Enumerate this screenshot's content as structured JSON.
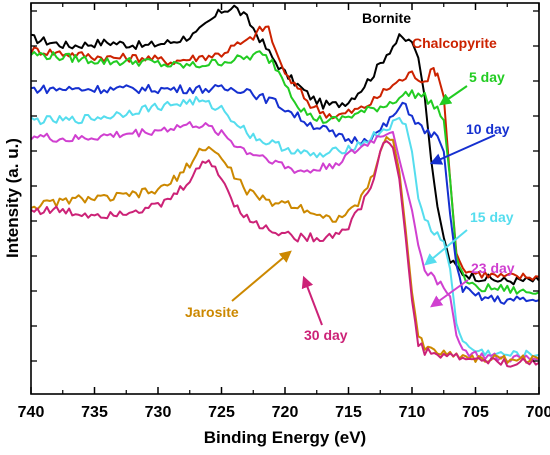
{
  "chart_data": {
    "type": "line",
    "xlabel": "Binding Energy (eV)",
    "ylabel": "Intensity (a. u.)",
    "xlim": [
      740,
      700
    ],
    "x_reversed": true,
    "x_ticks": [
      "740",
      "735",
      "730",
      "725",
      "720",
      "715",
      "710",
      "705",
      "700"
    ],
    "y_ticks_labeled": false,
    "y_units": "relative (0-100)",
    "ylim": [
      0,
      100
    ],
    "grid": false,
    "legend": "inline labels with arrows",
    "series": [
      {
        "name": "Bornite",
        "color": "#000000",
        "points": [
          [
            740,
            91
          ],
          [
            737,
            89
          ],
          [
            734,
            90
          ],
          [
            731,
            89
          ],
          [
            729,
            90
          ],
          [
            727,
            92
          ],
          [
            726,
            95
          ],
          [
            725,
            98
          ],
          [
            724,
            99
          ],
          [
            723,
            96
          ],
          [
            722,
            91
          ],
          [
            721,
            86
          ],
          [
            720,
            82
          ],
          [
            719,
            79
          ],
          [
            718,
            76
          ],
          [
            717,
            74
          ],
          [
            716,
            74
          ],
          [
            715,
            75
          ],
          [
            714,
            78
          ],
          [
            713,
            82
          ],
          [
            712,
            87
          ],
          [
            711,
            91
          ],
          [
            710,
            90
          ],
          [
            709.5,
            86
          ],
          [
            709,
            76
          ],
          [
            708.5,
            60
          ],
          [
            708,
            48
          ],
          [
            707.5,
            40
          ],
          [
            707,
            34
          ],
          [
            706,
            31
          ],
          [
            705,
            30
          ],
          [
            703,
            29
          ],
          [
            701,
            29
          ],
          [
            700,
            29
          ]
        ]
      },
      {
        "name": "Chalcopyrite",
        "color": "#cc2200",
        "points": [
          [
            740,
            88
          ],
          [
            737,
            87
          ],
          [
            734,
            86
          ],
          [
            731,
            86
          ],
          [
            729,
            85
          ],
          [
            727,
            86
          ],
          [
            725,
            87
          ],
          [
            724,
            89
          ],
          [
            723,
            90
          ],
          [
            722,
            93
          ],
          [
            721.3,
            94
          ],
          [
            721,
            90
          ],
          [
            720,
            82
          ],
          [
            719,
            78
          ],
          [
            718,
            74
          ],
          [
            717,
            72
          ],
          [
            716,
            71
          ],
          [
            715,
            72
          ],
          [
            714,
            73
          ],
          [
            713,
            75
          ],
          [
            712,
            78
          ],
          [
            711,
            80
          ],
          [
            710,
            82
          ],
          [
            709.5,
            81
          ],
          [
            709,
            80
          ],
          [
            708.3,
            83
          ],
          [
            708,
            82
          ],
          [
            707.5,
            76
          ],
          [
            707,
            55
          ],
          [
            706.5,
            36
          ],
          [
            706,
            32
          ],
          [
            705,
            31
          ],
          [
            703,
            30
          ],
          [
            701,
            30
          ],
          [
            700,
            30
          ]
        ]
      },
      {
        "name": "5 day",
        "color": "#22cc22",
        "points": [
          [
            740,
            87
          ],
          [
            737,
            86
          ],
          [
            734,
            85
          ],
          [
            731,
            85
          ],
          [
            729,
            84
          ],
          [
            727,
            84
          ],
          [
            725,
            85
          ],
          [
            723,
            86
          ],
          [
            722,
            87
          ],
          [
            721,
            85
          ],
          [
            720,
            80
          ],
          [
            719,
            74
          ],
          [
            718,
            71
          ],
          [
            717,
            70
          ],
          [
            716,
            70
          ],
          [
            715,
            71
          ],
          [
            714,
            72
          ],
          [
            713,
            73
          ],
          [
            712,
            74
          ],
          [
            711,
            76
          ],
          [
            710,
            77
          ],
          [
            709,
            76
          ],
          [
            708,
            73
          ],
          [
            707.5,
            70
          ],
          [
            707,
            55
          ],
          [
            706.5,
            35
          ],
          [
            706,
            30
          ],
          [
            705,
            27
          ],
          [
            703,
            27
          ],
          [
            701,
            26
          ],
          [
            700,
            26
          ]
        ]
      },
      {
        "name": "10 day",
        "color": "#1530d0",
        "points": [
          [
            740,
            78
          ],
          [
            737,
            78
          ],
          [
            734,
            78
          ],
          [
            731,
            78
          ],
          [
            729,
            78
          ],
          [
            727,
            78
          ],
          [
            725,
            78
          ],
          [
            723,
            78
          ],
          [
            722,
            76
          ],
          [
            721,
            75
          ],
          [
            720,
            73
          ],
          [
            719,
            71
          ],
          [
            718,
            69
          ],
          [
            717,
            68
          ],
          [
            716,
            66
          ],
          [
            715,
            65
          ],
          [
            714,
            65
          ],
          [
            713,
            66
          ],
          [
            712,
            69
          ],
          [
            711,
            73
          ],
          [
            710.5,
            74
          ],
          [
            710,
            71
          ],
          [
            709,
            67
          ],
          [
            708,
            66
          ],
          [
            707.5,
            62
          ],
          [
            707,
            46
          ],
          [
            706.5,
            33
          ],
          [
            706,
            27
          ],
          [
            705,
            25
          ],
          [
            703,
            24
          ],
          [
            701,
            24
          ],
          [
            700,
            24
          ]
        ]
      },
      {
        "name": "15 day",
        "color": "#55ddee",
        "points": [
          [
            740,
            70
          ],
          [
            737,
            70
          ],
          [
            734,
            71
          ],
          [
            731,
            73
          ],
          [
            729,
            74
          ],
          [
            727,
            75
          ],
          [
            726,
            74
          ],
          [
            725,
            73
          ],
          [
            724,
            70
          ],
          [
            723,
            67
          ],
          [
            722,
            65
          ],
          [
            721,
            64
          ],
          [
            720,
            63
          ],
          [
            719,
            62
          ],
          [
            718,
            61
          ],
          [
            717,
            61
          ],
          [
            716,
            62
          ],
          [
            715,
            63
          ],
          [
            714,
            64
          ],
          [
            713,
            66
          ],
          [
            712,
            68
          ],
          [
            711,
            70
          ],
          [
            710.5,
            69
          ],
          [
            710,
            62
          ],
          [
            709.5,
            50
          ],
          [
            709,
            45
          ],
          [
            708.5,
            42
          ],
          [
            708,
            41
          ],
          [
            707.5,
            39
          ],
          [
            707,
            32
          ],
          [
            706.5,
            18
          ],
          [
            706,
            13
          ],
          [
            705,
            11
          ],
          [
            703,
            10
          ],
          [
            701,
            10
          ],
          [
            700,
            10
          ]
        ]
      },
      {
        "name": "23 day",
        "color": "#d040d0",
        "points": [
          [
            740,
            66
          ],
          [
            737,
            65
          ],
          [
            734,
            66
          ],
          [
            731,
            67
          ],
          [
            729,
            68
          ],
          [
            727,
            69
          ],
          [
            726,
            68
          ],
          [
            725,
            67
          ],
          [
            724,
            64
          ],
          [
            723,
            62
          ],
          [
            722,
            61
          ],
          [
            721,
            60
          ],
          [
            720,
            58
          ],
          [
            719,
            57
          ],
          [
            718,
            57
          ],
          [
            717,
            58
          ],
          [
            716,
            59
          ],
          [
            715,
            61
          ],
          [
            714,
            63
          ],
          [
            713,
            65
          ],
          [
            712,
            67
          ],
          [
            711.5,
            67
          ],
          [
            711,
            60
          ],
          [
            710,
            47
          ],
          [
            709.5,
            38
          ],
          [
            709,
            32
          ],
          [
            708.5,
            30
          ],
          [
            708,
            29
          ],
          [
            707.5,
            28
          ],
          [
            707,
            25
          ],
          [
            706.5,
            15
          ],
          [
            706,
            11
          ],
          [
            705,
            10
          ],
          [
            703,
            9
          ],
          [
            701,
            9
          ],
          [
            700,
            9
          ]
        ]
      },
      {
        "name": "Jarosite",
        "color": "#cc8800",
        "points": [
          [
            740,
            48
          ],
          [
            738,
            49
          ],
          [
            736,
            50
          ],
          [
            734,
            50
          ],
          [
            732,
            51
          ],
          [
            730,
            52
          ],
          [
            729,
            54
          ],
          [
            728,
            57
          ],
          [
            727,
            61
          ],
          [
            726.5,
            63
          ],
          [
            726,
            63
          ],
          [
            725.5,
            62
          ],
          [
            725,
            60
          ],
          [
            724,
            56
          ],
          [
            723,
            52
          ],
          [
            722,
            50
          ],
          [
            721,
            49
          ],
          [
            720,
            49
          ],
          [
            719,
            48
          ],
          [
            718,
            47
          ],
          [
            717,
            45
          ],
          [
            716,
            45
          ],
          [
            715,
            46
          ],
          [
            714,
            50
          ],
          [
            713,
            56
          ],
          [
            712.5,
            62
          ],
          [
            712,
            66
          ],
          [
            711.5,
            65
          ],
          [
            711,
            57
          ],
          [
            710.5,
            42
          ],
          [
            710,
            26
          ],
          [
            709.5,
            15
          ],
          [
            709,
            12
          ],
          [
            708,
            11
          ],
          [
            707,
            10
          ],
          [
            706,
            10
          ],
          [
            705,
            9
          ],
          [
            703,
            9
          ],
          [
            701,
            9
          ],
          [
            700,
            9
          ]
        ]
      },
      {
        "name": "30 day",
        "color": "#cc2277",
        "points": [
          [
            740,
            47
          ],
          [
            738,
            47
          ],
          [
            736,
            46
          ],
          [
            734,
            46
          ],
          [
            732,
            47
          ],
          [
            730,
            48
          ],
          [
            729,
            50
          ],
          [
            728,
            53
          ],
          [
            727,
            57
          ],
          [
            726,
            60
          ],
          [
            725.5,
            58
          ],
          [
            725,
            55
          ],
          [
            724,
            49
          ],
          [
            723,
            45
          ],
          [
            722,
            43
          ],
          [
            721,
            42
          ],
          [
            720,
            41
          ],
          [
            719,
            40
          ],
          [
            718,
            40
          ],
          [
            717,
            40
          ],
          [
            716,
            41
          ],
          [
            715,
            43
          ],
          [
            714,
            48
          ],
          [
            713,
            55
          ],
          [
            712.5,
            62
          ],
          [
            712,
            65
          ],
          [
            711.5,
            63
          ],
          [
            711,
            55
          ],
          [
            710.5,
            40
          ],
          [
            710,
            24
          ],
          [
            709.5,
            13
          ],
          [
            709,
            11
          ],
          [
            708,
            10
          ],
          [
            707,
            10
          ],
          [
            706,
            9
          ],
          [
            705,
            9
          ],
          [
            703,
            8
          ],
          [
            701,
            8
          ],
          [
            700,
            8
          ]
        ]
      }
    ],
    "annotations": [
      {
        "text": "Bornite",
        "color": "#000000"
      },
      {
        "text": "Chalcopyrite",
        "color": "#cc2200"
      },
      {
        "text": "5 day",
        "color": "#22cc22"
      },
      {
        "text": "10 day",
        "color": "#1530d0"
      },
      {
        "text": "15 day",
        "color": "#55ddee"
      },
      {
        "text": "23 day",
        "color": "#d040d0"
      },
      {
        "text": "Jarosite",
        "color": "#cc8800"
      },
      {
        "text": "30 day",
        "color": "#cc2277"
      }
    ]
  }
}
